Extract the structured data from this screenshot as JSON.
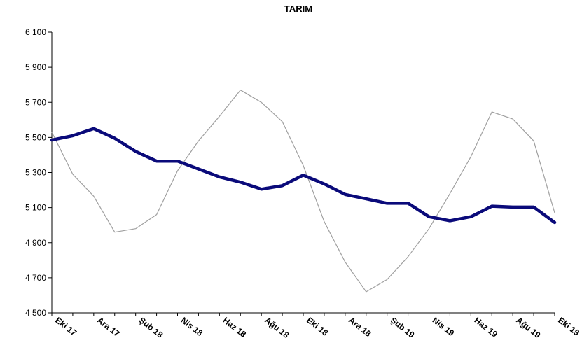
{
  "chart_data": {
    "type": "line",
    "title": "TARIM",
    "xlabel": "",
    "ylabel": "",
    "ylim": [
      4500,
      6100
    ],
    "yticks": [
      "6 100",
      "5 900",
      "5 700",
      "5 500",
      "5 300",
      "5 100",
      "4 900",
      "4 700",
      "4 500"
    ],
    "ytick_values": [
      6100,
      5900,
      5700,
      5500,
      5300,
      5100,
      4900,
      4700,
      4500
    ],
    "grid": false,
    "legend": "none",
    "x_tick_labels": [
      "Eki 17",
      "Ara 17",
      "Şub 18",
      "Nis 18",
      "Haz 18",
      "Ağu 18",
      "Eki 18",
      "Ara 18",
      "Şub 19",
      "Nis 19",
      "Haz 19",
      "Ağu 19",
      "Eki 19"
    ],
    "x": [
      "Eki 17",
      "Kas 17",
      "Ara 17",
      "Oca 18",
      "Şub 18",
      "Mar 18",
      "Nis 18",
      "May 18",
      "Haz 18",
      "Tem 18",
      "Ağu 18",
      "Eyl 18",
      "Eki 18",
      "Kas 18",
      "Ara 18",
      "Oca 19",
      "Şub 19",
      "Mar 19",
      "Nis 19",
      "May 19",
      "Haz 19",
      "Tem 19",
      "Ağu 19",
      "Eyl 19",
      "Eki 19"
    ],
    "series": [
      {
        "color": "#a0a0a0",
        "line_width": 1.2,
        "values": [
          5530,
          5290,
          5165,
          4960,
          4980,
          5060,
          5310,
          5480,
          5620,
          5770,
          5700,
          5590,
          5340,
          5020,
          4790,
          4620,
          4690,
          4820,
          4980,
          5180,
          5390,
          5645,
          5605,
          5480,
          5070
        ]
      },
      {
        "color": "#0a0a7a",
        "line_width": 4.5,
        "values": [
          5485,
          5510,
          5550,
          5495,
          5420,
          5365,
          5365,
          5320,
          5275,
          5245,
          5205,
          5225,
          5285,
          5235,
          5175,
          5150,
          5125,
          5125,
          5048,
          5025,
          5048,
          5108,
          5103,
          5103,
          5015
        ]
      }
    ]
  }
}
